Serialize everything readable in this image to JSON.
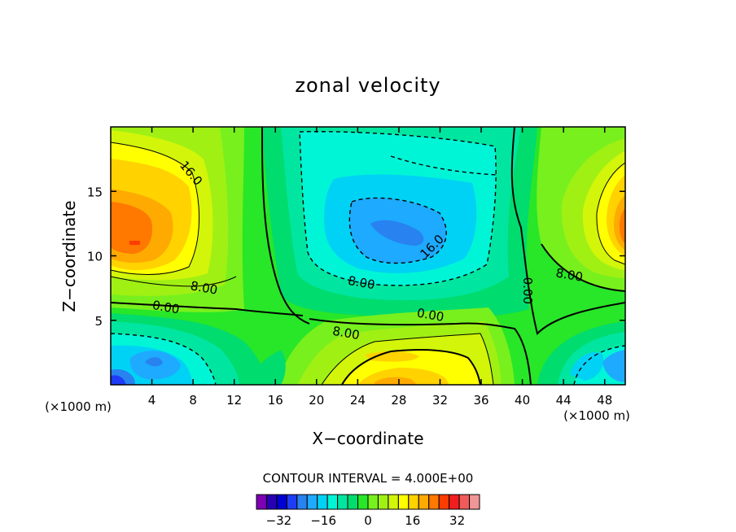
{
  "chart_data": {
    "type": "heatmap",
    "title": "zonal velocity",
    "xlabel": "X−coordinate",
    "ylabel": "Z−coordinate",
    "x_unit": "(×1000 m)",
    "y_unit": "(×1000 m)",
    "xlim": [
      0,
      50
    ],
    "ylim": [
      0,
      20
    ],
    "x_ticks": [
      4,
      8,
      12,
      16,
      20,
      24,
      28,
      32,
      36,
      40,
      44,
      48
    ],
    "y_ticks": [
      5,
      10,
      15
    ],
    "contour_interval_text": "CONTOUR INTERVAL = 4.000E+00",
    "contour_labels": [
      {
        "text": "16.0",
        "x": 7.5,
        "y": 16.2
      },
      {
        "text": "8.00",
        "x": 9.0,
        "y": 7.2
      },
      {
        "text": "0.00",
        "x": 5.3,
        "y": 5.7
      },
      {
        "text": "16.0",
        "x": 31.5,
        "y": 10.5
      },
      {
        "text": "8.00",
        "x": 24.3,
        "y": 7.6
      },
      {
        "text": "0.00",
        "x": 31.0,
        "y": 5.1
      },
      {
        "text": "8.00",
        "x": 22.8,
        "y": 3.7
      },
      {
        "text": "0.00",
        "x": 40.1,
        "y": 7.3
      },
      {
        "text": "8.00",
        "x": 44.5,
        "y": 8.2
      }
    ],
    "colorbar": {
      "colors": [
        "#7d00b4",
        "#2800b4",
        "#0000d2",
        "#1e3cf5",
        "#2882f0",
        "#1eaaff",
        "#00d2f5",
        "#00f5d7",
        "#00e6a0",
        "#00dc6e",
        "#28e628",
        "#78f01e",
        "#a0f014",
        "#d2f50a",
        "#ffff00",
        "#ffd200",
        "#ffaa00",
        "#ff7800",
        "#ff3c00",
        "#f01e1e",
        "#f05a5a",
        "#f09696"
      ],
      "tick_labels": [
        "−32",
        "−16",
        "0",
        "16",
        "32"
      ],
      "tick_values": [
        -32,
        -16,
        0,
        16,
        32
      ],
      "min": -40,
      "max": 40
    },
    "grid": false
  }
}
